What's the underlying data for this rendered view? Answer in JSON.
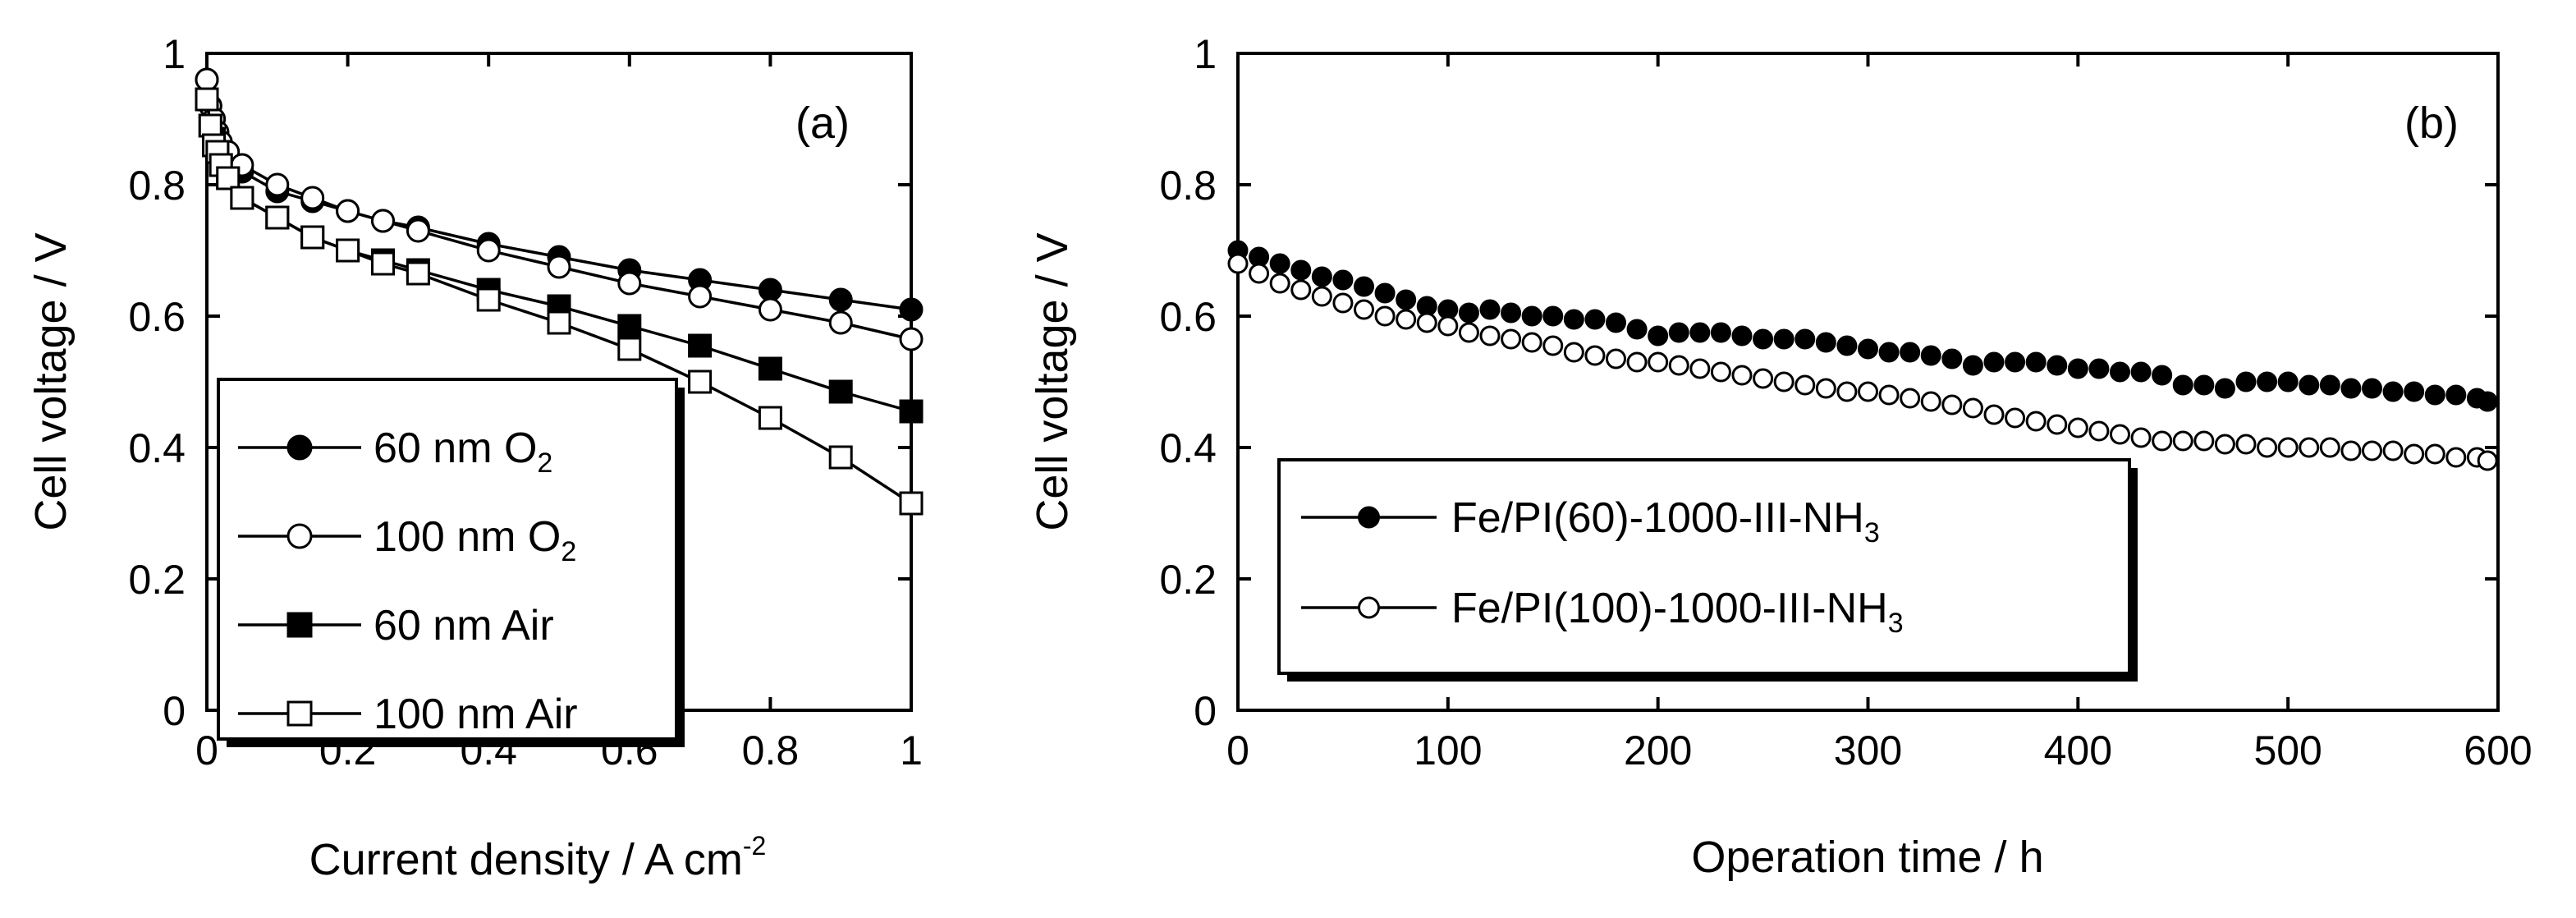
{
  "chart_data": [
    {
      "panel": "(a)",
      "type": "line",
      "xlabel": "Current density / A cm",
      "xlabel_sup": "-2",
      "ylabel": "Cell voltage / V",
      "xlim": [
        0,
        1
      ],
      "ylim": [
        0,
        1
      ],
      "xticks": [
        0,
        0.2,
        0.4,
        0.6,
        0.8,
        1
      ],
      "xtick_labels": [
        "0",
        "0.2",
        "0.4",
        "0.6",
        "0.8",
        "1"
      ],
      "yticks": [
        0,
        0.2,
        0.4,
        0.6,
        0.8,
        1
      ],
      "ytick_labels": [
        "0",
        "0.2",
        "0.4",
        "0.6",
        "0.8",
        "1"
      ],
      "legend_position": "bottom-left",
      "series": [
        {
          "name": "60 nm O",
          "name_sub": "2",
          "marker": "circle",
          "filled": true,
          "x": [
            0,
            0.005,
            0.01,
            0.015,
            0.02,
            0.03,
            0.05,
            0.1,
            0.15,
            0.2,
            0.25,
            0.3,
            0.4,
            0.5,
            0.6,
            0.7,
            0.8,
            0.9,
            1.0
          ],
          "y": [
            0.96,
            0.92,
            0.9,
            0.88,
            0.86,
            0.84,
            0.82,
            0.79,
            0.775,
            0.76,
            0.745,
            0.735,
            0.71,
            0.69,
            0.67,
            0.655,
            0.64,
            0.625,
            0.61
          ]
        },
        {
          "name": "100 nm O",
          "name_sub": "2",
          "marker": "circle",
          "filled": false,
          "x": [
            0,
            0.005,
            0.01,
            0.015,
            0.02,
            0.03,
            0.05,
            0.1,
            0.15,
            0.2,
            0.25,
            0.3,
            0.4,
            0.5,
            0.6,
            0.7,
            0.8,
            0.9,
            1.0
          ],
          "y": [
            0.96,
            0.92,
            0.9,
            0.88,
            0.865,
            0.85,
            0.83,
            0.8,
            0.78,
            0.76,
            0.745,
            0.73,
            0.7,
            0.675,
            0.65,
            0.63,
            0.61,
            0.59,
            0.565
          ]
        },
        {
          "name": "60 nm Air",
          "name_sub": "",
          "marker": "square",
          "filled": true,
          "x": [
            0,
            0.005,
            0.01,
            0.015,
            0.02,
            0.03,
            0.05,
            0.1,
            0.15,
            0.2,
            0.25,
            0.3,
            0.4,
            0.5,
            0.6,
            0.7,
            0.8,
            0.9,
            1.0
          ],
          "y": [
            0.93,
            0.89,
            0.87,
            0.85,
            0.83,
            0.81,
            0.78,
            0.75,
            0.72,
            0.7,
            0.685,
            0.67,
            0.64,
            0.615,
            0.585,
            0.555,
            0.52,
            0.485,
            0.455
          ]
        },
        {
          "name": "100 nm Air",
          "name_sub": "",
          "marker": "square",
          "filled": false,
          "x": [
            0,
            0.005,
            0.01,
            0.015,
            0.02,
            0.03,
            0.05,
            0.1,
            0.15,
            0.2,
            0.25,
            0.3,
            0.4,
            0.5,
            0.6,
            0.7,
            0.8,
            0.9,
            1.0
          ],
          "y": [
            0.93,
            0.89,
            0.86,
            0.85,
            0.83,
            0.81,
            0.78,
            0.75,
            0.72,
            0.7,
            0.68,
            0.665,
            0.625,
            0.59,
            0.55,
            0.5,
            0.445,
            0.385,
            0.315
          ]
        }
      ]
    },
    {
      "panel": "(b)",
      "type": "scatter",
      "xlabel": "Operation time / h",
      "ylabel": "Cell voltage / V",
      "xlim": [
        0,
        600
      ],
      "ylim": [
        0,
        1
      ],
      "xticks": [
        0,
        100,
        200,
        300,
        400,
        500,
        600
      ],
      "xtick_labels": [
        "0",
        "100",
        "200",
        "300",
        "400",
        "500",
        "600"
      ],
      "yticks": [
        0,
        0.2,
        0.4,
        0.6,
        0.8,
        1
      ],
      "ytick_labels": [
        "0",
        "0.2",
        "0.4",
        "0.6",
        "0.8",
        "1"
      ],
      "legend_position": "bottom-left",
      "series": [
        {
          "name": "Fe/PI(60)-1000-III-NH",
          "name_sub": "3",
          "marker": "circle",
          "filled": true,
          "x": [
            0,
            10,
            20,
            30,
            40,
            50,
            60,
            70,
            80,
            90,
            100,
            110,
            120,
            130,
            140,
            150,
            160,
            170,
            180,
            190,
            200,
            210,
            220,
            230,
            240,
            250,
            260,
            270,
            280,
            290,
            300,
            310,
            320,
            330,
            340,
            350,
            360,
            370,
            380,
            390,
            400,
            410,
            420,
            430,
            440,
            450,
            460,
            470,
            480,
            490,
            500,
            510,
            520,
            530,
            540,
            550,
            560,
            570,
            580,
            590,
            595
          ],
          "y": [
            0.7,
            0.69,
            0.68,
            0.67,
            0.66,
            0.655,
            0.645,
            0.635,
            0.625,
            0.615,
            0.61,
            0.605,
            0.61,
            0.605,
            0.6,
            0.6,
            0.595,
            0.595,
            0.59,
            0.58,
            0.57,
            0.575,
            0.575,
            0.575,
            0.57,
            0.565,
            0.565,
            0.565,
            0.56,
            0.555,
            0.55,
            0.545,
            0.545,
            0.54,
            0.535,
            0.525,
            0.53,
            0.53,
            0.53,
            0.525,
            0.52,
            0.52,
            0.515,
            0.515,
            0.51,
            0.495,
            0.495,
            0.49,
            0.5,
            0.5,
            0.5,
            0.495,
            0.495,
            0.49,
            0.49,
            0.485,
            0.485,
            0.48,
            0.48,
            0.475,
            0.47
          ]
        },
        {
          "name": "Fe/PI(100)-1000-III-NH",
          "name_sub": "3",
          "marker": "circle",
          "filled": false,
          "x": [
            0,
            10,
            20,
            30,
            40,
            50,
            60,
            70,
            80,
            90,
            100,
            110,
            120,
            130,
            140,
            150,
            160,
            170,
            180,
            190,
            200,
            210,
            220,
            230,
            240,
            250,
            260,
            270,
            280,
            290,
            300,
            310,
            320,
            330,
            340,
            350,
            360,
            370,
            380,
            390,
            400,
            410,
            420,
            430,
            440,
            450,
            460,
            470,
            480,
            490,
            500,
            510,
            520,
            530,
            540,
            550,
            560,
            570,
            580,
            590,
            595
          ],
          "y": [
            0.68,
            0.665,
            0.65,
            0.64,
            0.63,
            0.62,
            0.61,
            0.6,
            0.595,
            0.59,
            0.585,
            0.575,
            0.57,
            0.565,
            0.56,
            0.555,
            0.545,
            0.54,
            0.535,
            0.53,
            0.53,
            0.525,
            0.52,
            0.515,
            0.51,
            0.505,
            0.5,
            0.495,
            0.49,
            0.485,
            0.485,
            0.48,
            0.475,
            0.47,
            0.465,
            0.46,
            0.45,
            0.445,
            0.44,
            0.435,
            0.43,
            0.425,
            0.42,
            0.415,
            0.41,
            0.41,
            0.41,
            0.405,
            0.405,
            0.4,
            0.4,
            0.4,
            0.4,
            0.395,
            0.395,
            0.395,
            0.39,
            0.39,
            0.385,
            0.385,
            0.38
          ]
        }
      ]
    }
  ]
}
